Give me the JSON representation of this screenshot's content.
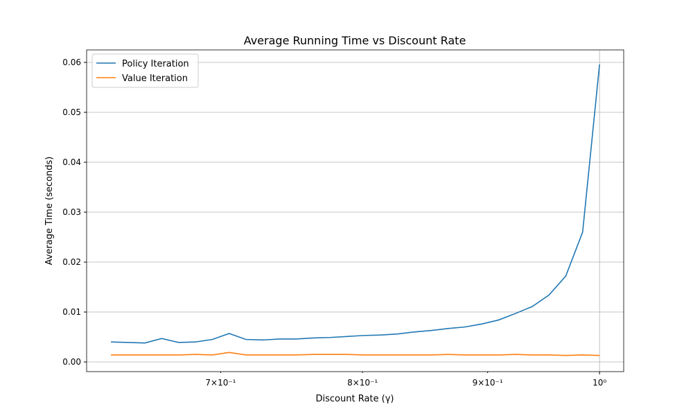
{
  "chart_data": {
    "type": "line",
    "title": "Average Running Time vs Discount Rate",
    "xlabel": "Discount Rate (γ)",
    "ylabel": "Average Time (seconds)",
    "xscale": "log",
    "grid": true,
    "legend": "upper left",
    "x": [
      0.6313,
      0.6415,
      0.6518,
      0.6622,
      0.6728,
      0.6836,
      0.6945,
      0.7056,
      0.7169,
      0.7284,
      0.74,
      0.7516,
      0.7637,
      0.776,
      0.7884,
      0.801,
      0.8138,
      0.8268,
      0.8398,
      0.8533,
      0.867,
      0.8809,
      0.895,
      0.9093,
      0.9238,
      0.9386,
      0.9535,
      0.9687,
      0.9842,
      1.0
    ],
    "series": [
      {
        "name": "Policy Iteration",
        "color": "#1f77b4",
        "values": [
          0.004,
          0.0039,
          0.0038,
          0.0047,
          0.0039,
          0.004,
          0.0045,
          0.0057,
          0.0045,
          0.0044,
          0.0046,
          0.0046,
          0.0048,
          0.0049,
          0.0051,
          0.0053,
          0.0054,
          0.0056,
          0.006,
          0.0063,
          0.0067,
          0.007,
          0.0076,
          0.0084,
          0.0097,
          0.0111,
          0.0134,
          0.0172,
          0.026,
          0.0596
        ]
      },
      {
        "name": "Value Iteration",
        "color": "#ff7f0e",
        "values": [
          0.0014,
          0.0014,
          0.0014,
          0.0014,
          0.0014,
          0.0015,
          0.0014,
          0.0019,
          0.0014,
          0.0014,
          0.0014,
          0.0014,
          0.0015,
          0.0015,
          0.0015,
          0.0014,
          0.0014,
          0.0014,
          0.0014,
          0.0014,
          0.0015,
          0.0014,
          0.0014,
          0.0014,
          0.0015,
          0.0014,
          0.0014,
          0.0013,
          0.0014,
          0.0013
        ]
      }
    ],
    "xlim": [
      0.617,
      1.023
    ],
    "xticks": [
      {
        "value": 1,
        "label": "10⁰"
      }
    ],
    "xminorticks": [
      {
        "value": 0.7,
        "label": "7×10⁻¹"
      },
      {
        "value": 0.8,
        "label": "8×10⁻¹"
      },
      {
        "value": 0.9,
        "label": "9×10⁻¹"
      }
    ],
    "ylim": [
      -0.00194,
      0.0625
    ],
    "yticks": [
      {
        "value": 0,
        "label": "0.00"
      },
      {
        "value": 0.01,
        "label": "0.01"
      },
      {
        "value": 0.02,
        "label": "0.02"
      },
      {
        "value": 0.03,
        "label": "0.03"
      },
      {
        "value": 0.04,
        "label": "0.04"
      },
      {
        "value": 0.05,
        "label": "0.05"
      },
      {
        "value": 0.06,
        "label": "0.06"
      }
    ]
  }
}
